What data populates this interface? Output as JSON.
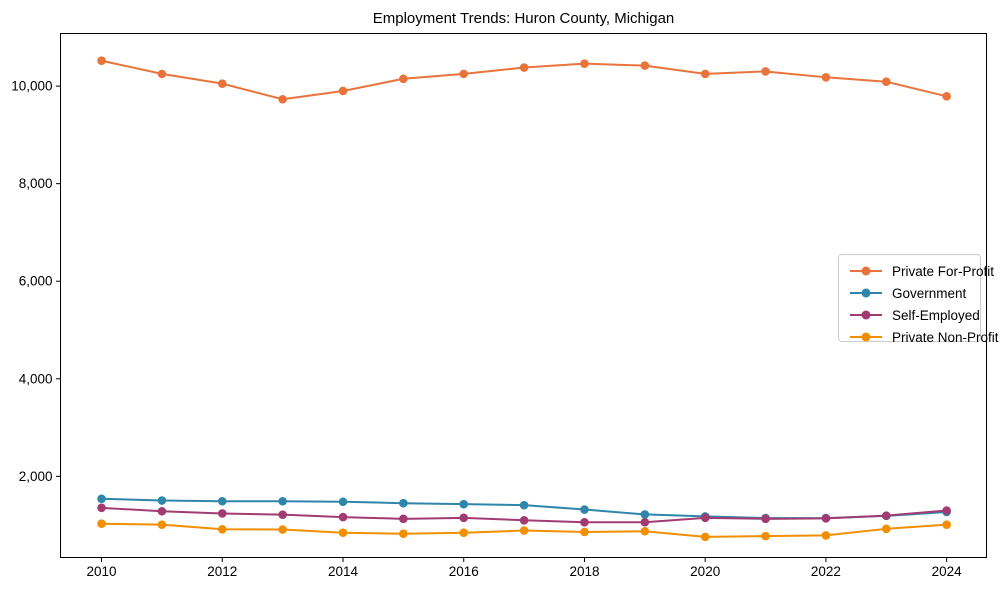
{
  "figure": {
    "background": "#ffffff",
    "frame_color": "#000000",
    "text_color": "#000000"
  },
  "chart_data": {
    "type": "line",
    "title": "Employment Trends: Huron County, Michigan",
    "xlabel": "",
    "ylabel": "",
    "grid": false,
    "legend_position": "center right",
    "marker": "circle",
    "xlim": [
      2009.32,
      2024.66
    ],
    "ylim": [
      337,
      11078
    ],
    "x": [
      2010,
      2011,
      2012,
      2013,
      2014,
      2015,
      2016,
      2017,
      2018,
      2019,
      2020,
      2021,
      2022,
      2023,
      2024
    ],
    "x_ticks": [
      2010,
      2012,
      2014,
      2016,
      2018,
      2020,
      2022,
      2024
    ],
    "x_tick_labels": [
      "2010",
      "2012",
      "2014",
      "2016",
      "2018",
      "2020",
      "2022",
      "2024"
    ],
    "y_ticks": [
      2000,
      4000,
      6000,
      8000,
      10000
    ],
    "y_tick_labels": [
      "2,000",
      "4,000",
      "6,000",
      "8,000",
      "10,000"
    ],
    "series": [
      {
        "name": "Private For-Profit",
        "color": "#E8743B",
        "values": [
          10520,
          10250,
          10050,
          9730,
          9900,
          10150,
          10250,
          10380,
          10460,
          10420,
          10250,
          10300,
          10180,
          10090,
          9790
        ]
      },
      {
        "name": "Government",
        "color": "#2E86AB",
        "values": [
          1540,
          1505,
          1490,
          1490,
          1480,
          1450,
          1430,
          1410,
          1320,
          1220,
          1180,
          1145,
          1145,
          1190,
          1270
        ]
      },
      {
        "name": "Self-Employed",
        "color": "#A23B72",
        "values": [
          1355,
          1285,
          1240,
          1215,
          1165,
          1130,
          1150,
          1100,
          1060,
          1060,
          1150,
          1130,
          1140,
          1195,
          1300
        ]
      },
      {
        "name": "Private Non-Profit",
        "color": "#F18F01",
        "values": [
          1030,
          1010,
          915,
          910,
          845,
          825,
          845,
          890,
          860,
          875,
          760,
          775,
          790,
          925,
          1010
        ]
      }
    ]
  }
}
